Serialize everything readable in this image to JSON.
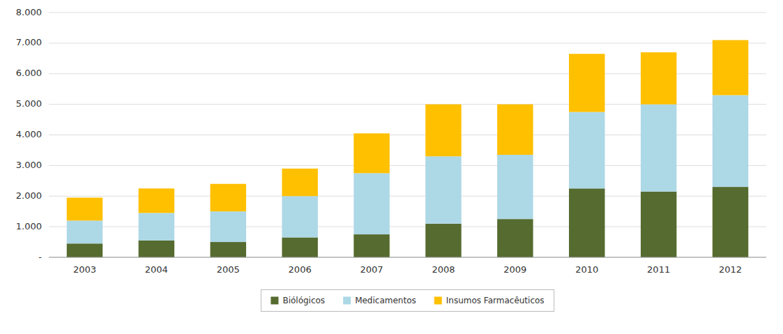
{
  "chart_data": {
    "type": "bar",
    "stacked": true,
    "categories": [
      "2003",
      "2004",
      "2005",
      "2006",
      "2007",
      "2008",
      "2009",
      "2010",
      "2011",
      "2012"
    ],
    "series": [
      {
        "name": "Biólógicos",
        "color": "#556b2f",
        "values": [
          450,
          550,
          500,
          650,
          750,
          1100,
          1250,
          2250,
          2150,
          2300
        ]
      },
      {
        "name": "Medicamentos",
        "color": "#add8e6",
        "values": [
          750,
          900,
          1000,
          1350,
          2000,
          2200,
          2100,
          2500,
          2850,
          3000
        ]
      },
      {
        "name": "Insumos Farmacêuticos",
        "color": "#ffc000",
        "values": [
          750,
          800,
          900,
          900,
          1300,
          1700,
          1650,
          1900,
          1700,
          1800
        ]
      }
    ],
    "ylim": [
      0,
      8000
    ],
    "yticks": [
      {
        "value": 0,
        "label": "-"
      },
      {
        "value": 1000,
        "label": "1.000"
      },
      {
        "value": 2000,
        "label": "2.000"
      },
      {
        "value": 3000,
        "label": "3.000"
      },
      {
        "value": 4000,
        "label": "4.000"
      },
      {
        "value": 5000,
        "label": "5.000"
      },
      {
        "value": 6000,
        "label": "6.000"
      },
      {
        "value": 7000,
        "label": "7.000"
      },
      {
        "value": 8000,
        "label": "8.000"
      }
    ],
    "grid": true,
    "legend": "bottom"
  }
}
